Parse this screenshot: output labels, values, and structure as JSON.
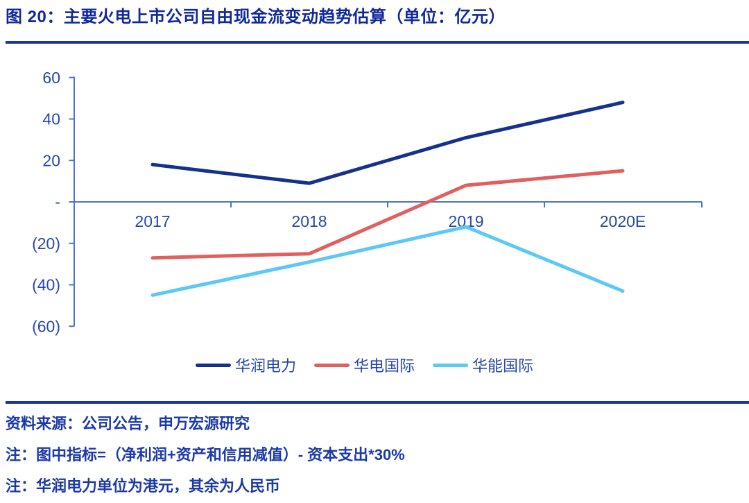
{
  "title": "图 20：主要火电上市公司自由现金流变动趋势估算（单位：亿元）",
  "chart_data": {
    "type": "line",
    "title": "主要火电上市公司自由现金流变动趋势估算",
    "unit": "亿元",
    "categories": [
      "2017",
      "2018",
      "2019",
      "2020E"
    ],
    "series": [
      {
        "name": "华润电力",
        "color": "#14318E",
        "values": [
          18,
          9,
          31,
          48
        ]
      },
      {
        "name": "华电国际",
        "color": "#E25F5F",
        "values": [
          -27,
          -25,
          8,
          15
        ]
      },
      {
        "name": "华能国际",
        "color": "#5CC8F5",
        "values": [
          -45,
          -29,
          -12,
          -43
        ]
      }
    ],
    "ylim": [
      -60,
      60
    ],
    "ytick_values": [
      60,
      40,
      20,
      0,
      -20,
      -40,
      -60
    ],
    "ytick_labels": [
      "60",
      "40",
      "20",
      "-",
      "(20)",
      "(40)",
      "(60)"
    ],
    "grid": false,
    "legend_position": "bottom",
    "axis_color": "#4E74C9",
    "tick_label_color": "#2747AC"
  },
  "footer": {
    "source": "资料来源：公司公告，申万宏源研究",
    "note1": "注：图中指标=（净利润+资产和信用减值）- 资本支出*30%",
    "note2": "注：华润电力单位为港元，其余为人民币"
  },
  "colors": {
    "title_text": "#10289A",
    "divider": "#1C3796",
    "footer_text": "#1B3AA6",
    "legend_text": "#2545AB"
  }
}
